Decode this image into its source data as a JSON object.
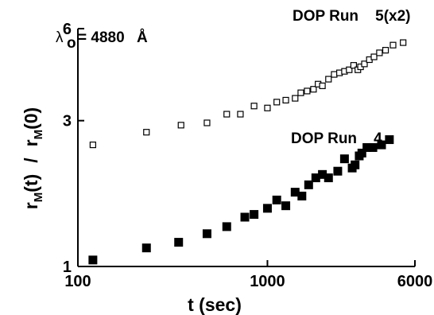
{
  "chart_data": {
    "type": "scatter",
    "x_scale": "log",
    "y_scale": "log",
    "xlim": [
      100,
      6000
    ],
    "ylim": [
      1,
      6
    ],
    "x_ticks": [
      "100",
      "1000",
      "6000"
    ],
    "y_ticks": [
      "1",
      "3",
      "6"
    ],
    "xlabel": "t (sec)",
    "ylabel": {
      "r1": "r",
      "s1": "M",
      "t1": "(t)",
      "slash": "/",
      "r2": "r",
      "s2": "M",
      "t2": "(0)"
    },
    "annotation": {
      "lambda": "λ",
      "sub": "o",
      "text": "= 4880",
      "unit": "Å"
    },
    "grid": false,
    "series": [
      {
        "name": "DOP Run    5(x2)",
        "marker": "open-square",
        "x": [
          120,
          230,
          350,
          480,
          610,
          720,
          850,
          1000,
          1120,
          1250,
          1400,
          1500,
          1620,
          1750,
          1850,
          1950,
          2100,
          2250,
          2400,
          2550,
          2700,
          2850,
          3000,
          3100,
          3250,
          3450,
          3650,
          3900,
          4200,
          4600,
          5200
        ],
        "y": [
          2.5,
          2.75,
          2.9,
          2.95,
          3.15,
          3.15,
          3.35,
          3.3,
          3.45,
          3.5,
          3.55,
          3.7,
          3.75,
          3.8,
          3.95,
          3.9,
          4.1,
          4.25,
          4.3,
          4.35,
          4.4,
          4.55,
          4.4,
          4.5,
          4.6,
          4.75,
          4.85,
          5.0,
          5.1,
          5.3,
          5.4
        ]
      },
      {
        "name": "DOP Run    4",
        "marker": "filled-square",
        "x": [
          120,
          230,
          340,
          480,
          610,
          760,
          850,
          1000,
          1120,
          1250,
          1400,
          1520,
          1650,
          1800,
          1950,
          2100,
          2350,
          2550,
          2800,
          2900,
          3050,
          3150,
          3350,
          3600,
          4000,
          4400
        ],
        "y": [
          1.05,
          1.15,
          1.2,
          1.28,
          1.35,
          1.45,
          1.48,
          1.55,
          1.65,
          1.58,
          1.75,
          1.7,
          1.85,
          1.95,
          2.0,
          1.95,
          2.05,
          2.25,
          2.1,
          2.15,
          2.3,
          2.35,
          2.45,
          2.45,
          2.5,
          2.6
        ]
      }
    ]
  }
}
